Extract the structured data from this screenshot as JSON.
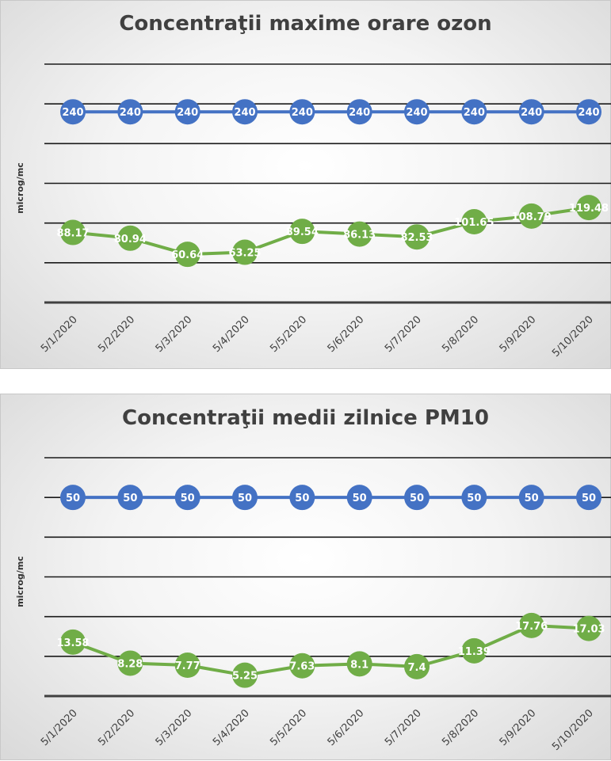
{
  "chart_data": [
    {
      "type": "line",
      "title": "Concentraţii maxime orare ozon",
      "ylabel": "microg/mc",
      "xlabel": "",
      "categories": [
        "5/1/2020",
        "5/2/2020",
        "5/3/2020",
        "5/4/2020",
        "5/5/2020",
        "5/6/2020",
        "5/7/2020",
        "5/8/2020",
        "5/9/2020",
        "5/10/2020"
      ],
      "ylim": [
        0,
        300
      ],
      "grid": true,
      "legend": "none",
      "series": [
        {
          "color": "#4472C4",
          "values": [
            240,
            240,
            240,
            240,
            240,
            240,
            240,
            240,
            240,
            240
          ],
          "labels": [
            "240",
            "240",
            "240",
            "240",
            "240",
            "240",
            "240",
            "240",
            "240",
            "240"
          ]
        },
        {
          "color": "#70AD47",
          "values": [
            88.17,
            80.94,
            60.64,
            63.25,
            89.54,
            86.13,
            82.53,
            101.65,
            108.79,
            119.48
          ],
          "labels": [
            "88.17",
            "80.94",
            "60.64",
            "63.25",
            "89.54",
            "86.13",
            "82.53",
            "101.65",
            "108.79",
            "119.48"
          ]
        }
      ]
    },
    {
      "type": "line",
      "title": "Concentraţii medii zilnice PM10",
      "ylabel": "microg/mc",
      "xlabel": "",
      "categories": [
        "5/1/2020",
        "5/2/2020",
        "5/3/2020",
        "5/4/2020",
        "5/5/2020",
        "5/6/2020",
        "5/7/2020",
        "5/8/2020",
        "5/9/2020",
        "5/10/2020"
      ],
      "ylim": [
        0,
        60
      ],
      "grid": true,
      "legend": "none",
      "series": [
        {
          "color": "#4472C4",
          "values": [
            50,
            50,
            50,
            50,
            50,
            50,
            50,
            50,
            50,
            50
          ],
          "labels": [
            "50",
            "50",
            "50",
            "50",
            "50",
            "50",
            "50",
            "50",
            "50",
            "50"
          ]
        },
        {
          "color": "#70AD47",
          "values": [
            13.58,
            8.28,
            7.77,
            5.25,
            7.63,
            8.1,
            7.4,
            11.39,
            17.76,
            17.03
          ],
          "labels": [
            "13.58",
            "8.28",
            "7.77",
            "5.25",
            "7.63",
            "8.1",
            "7.4",
            "11.39",
            "17.76",
            "17.03"
          ]
        }
      ]
    }
  ]
}
